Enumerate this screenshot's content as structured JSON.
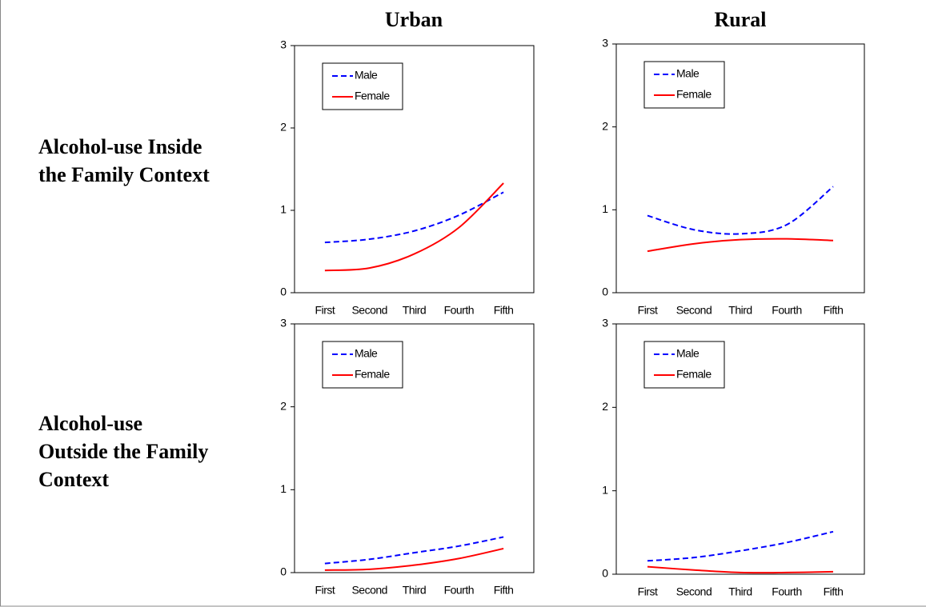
{
  "column_titles": [
    "Urban",
    "Rural"
  ],
  "row_titles": [
    [
      "Alcohol-use Inside",
      "the Family Context"
    ],
    [
      "Alcohol-use",
      "Outside the Family",
      "Context"
    ]
  ],
  "chart_data": [
    {
      "type": "line",
      "categories": [
        "First",
        "Second",
        "Third",
        "Fourth",
        "Fifth"
      ],
      "ylim": [
        0,
        3
      ],
      "yticks": [
        0,
        1,
        2,
        3
      ],
      "legend": "upper left",
      "series": [
        {
          "name": "Male",
          "color": "#0000ff",
          "line_style": "dashed",
          "values": [
            0.61,
            0.65,
            0.75,
            0.94,
            1.22
          ]
        },
        {
          "name": "Female",
          "color": "#ff0000",
          "line_style": "solid",
          "values": [
            0.27,
            0.3,
            0.47,
            0.79,
            1.33
          ]
        }
      ]
    },
    {
      "type": "line",
      "categories": [
        "First",
        "Second",
        "Third",
        "Fourth",
        "Fifth"
      ],
      "ylim": [
        0,
        3
      ],
      "yticks": [
        0,
        1,
        2,
        3
      ],
      "legend": "upper left",
      "series": [
        {
          "name": "Male",
          "color": "#0000ff",
          "line_style": "dashed",
          "values": [
            0.93,
            0.76,
            0.71,
            0.82,
            1.28
          ]
        },
        {
          "name": "Female",
          "color": "#ff0000",
          "line_style": "solid",
          "values": [
            0.5,
            0.59,
            0.64,
            0.65,
            0.63
          ]
        }
      ]
    },
    {
      "type": "line",
      "categories": [
        "First",
        "Second",
        "Third",
        "Fourth",
        "Fifth"
      ],
      "ylim": [
        0,
        3
      ],
      "yticks": [
        0,
        1,
        2,
        3
      ],
      "legend": "upper left",
      "series": [
        {
          "name": "Male",
          "color": "#0000ff",
          "line_style": "dashed",
          "values": [
            0.11,
            0.16,
            0.24,
            0.32,
            0.43
          ]
        },
        {
          "name": "Female",
          "color": "#ff0000",
          "line_style": "solid",
          "values": [
            0.03,
            0.04,
            0.09,
            0.17,
            0.29
          ]
        }
      ]
    },
    {
      "type": "line",
      "categories": [
        "First",
        "Second",
        "Third",
        "Fourth",
        "Fifth"
      ],
      "ylim": [
        0,
        3
      ],
      "yticks": [
        0,
        1,
        2,
        3
      ],
      "legend": "upper left",
      "series": [
        {
          "name": "Male",
          "color": "#0000ff",
          "line_style": "dashed",
          "values": [
            0.16,
            0.2,
            0.28,
            0.38,
            0.51
          ]
        },
        {
          "name": "Female",
          "color": "#ff0000",
          "line_style": "solid",
          "values": [
            0.09,
            0.05,
            0.02,
            0.02,
            0.03
          ]
        }
      ]
    }
  ]
}
